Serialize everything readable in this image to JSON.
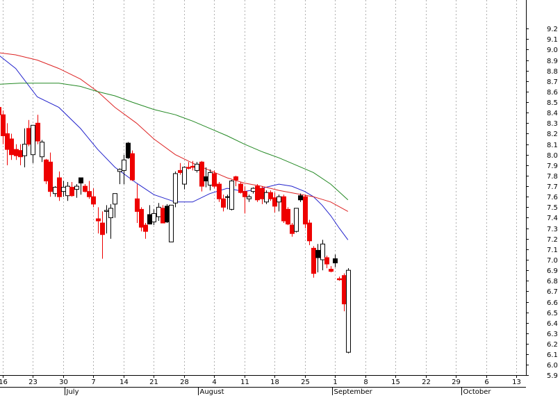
{
  "chart_data": {
    "type": "candlestick",
    "title": "",
    "xlabel": "",
    "ylabel": "",
    "ylim": [
      5.85,
      9.3
    ],
    "y_ticks": [
      "5.9",
      "6.0",
      "6.1",
      "6.2",
      "6.3",
      "6.4",
      "6.5",
      "6.6",
      "6.7",
      "6.8",
      "6.9",
      "7.0",
      "7.1",
      "7.2",
      "7.3",
      "7.4",
      "7.5",
      "7.6",
      "7.7",
      "7.8",
      "7.9",
      "8.0",
      "8.1",
      "8.2",
      "8.3",
      "8.4",
      "8.5",
      "8.6",
      "8.7",
      "8.8",
      "8.9",
      "9.0",
      "9.1",
      "9.2"
    ],
    "x_ticks": [
      {
        "day": 0,
        "label": "16"
      },
      {
        "day": 7,
        "label": "23"
      },
      {
        "day": 14,
        "label": "30"
      },
      {
        "day": 21,
        "label": "7"
      },
      {
        "day": 28,
        "label": "14"
      },
      {
        "day": 35,
        "label": "21"
      },
      {
        "day": 42,
        "label": "28"
      },
      {
        "day": 49,
        "label": "4"
      },
      {
        "day": 56,
        "label": "11"
      },
      {
        "day": 63,
        "label": "18"
      },
      {
        "day": 70,
        "label": "25"
      },
      {
        "day": 77,
        "label": "1"
      },
      {
        "day": 84,
        "label": "8"
      },
      {
        "day": 91,
        "label": "15"
      },
      {
        "day": 98,
        "label": "22"
      },
      {
        "day": 105,
        "label": "29"
      },
      {
        "day": 112,
        "label": "6"
      },
      {
        "day": 119,
        "label": "13"
      }
    ],
    "months": [
      {
        "day": 15,
        "label": "July"
      },
      {
        "day": 46,
        "label": "August"
      },
      {
        "day": 77,
        "label": "September"
      },
      {
        "day": 107,
        "label": "October"
      }
    ],
    "x_range": [
      0,
      124
    ],
    "grid": "vertical dotted",
    "colors": {
      "down_fill": "#ee0000",
      "up_fill": "#ffffff",
      "black_fill": "#000000",
      "ma_short": "#2222cc",
      "ma_medium": "#dd2222",
      "ma_long": "#228822",
      "grid": "#b0b0b0"
    },
    "candles": [
      {
        "day": -1,
        "o": 8.45,
        "h": 8.55,
        "l": 8.25,
        "c": 8.38,
        "col": "down"
      },
      {
        "day": 0,
        "o": 8.38,
        "h": 8.42,
        "l": 8.1,
        "c": 8.18,
        "col": "down"
      },
      {
        "day": 1,
        "o": 8.2,
        "h": 8.3,
        "l": 7.9,
        "c": 8.05,
        "col": "down"
      },
      {
        "day": 2,
        "o": 8.15,
        "h": 8.2,
        "l": 7.95,
        "c": 8.0,
        "col": "down"
      },
      {
        "day": 3,
        "o": 8.05,
        "h": 8.1,
        "l": 7.95,
        "c": 7.99,
        "col": "down"
      },
      {
        "day": 4,
        "o": 7.98,
        "h": 8.1,
        "l": 7.9,
        "c": 8.04,
        "col": "down"
      },
      {
        "day": 5,
        "o": 7.99,
        "h": 8.25,
        "l": 7.88,
        "c": 8.1,
        "col": "up"
      },
      {
        "day": 6,
        "o": 8.1,
        "h": 8.33,
        "l": 8.08,
        "c": 8.25,
        "col": "down"
      },
      {
        "day": 7,
        "o": 8.0,
        "h": 8.28,
        "l": 7.92,
        "c": 8.28,
        "col": "up"
      },
      {
        "day": 8,
        "o": 8.3,
        "h": 8.38,
        "l": 8.1,
        "c": 8.13,
        "col": "down"
      },
      {
        "day": 9,
        "o": 8.12,
        "h": 8.14,
        "l": 7.93,
        "c": 7.98,
        "col": "up"
      },
      {
        "day": 10,
        "o": 7.95,
        "h": 7.96,
        "l": 7.72,
        "c": 7.75,
        "col": "down"
      },
      {
        "day": 11,
        "o": 7.93,
        "h": 8.02,
        "l": 7.6,
        "c": 7.65,
        "col": "down"
      },
      {
        "day": 12,
        "o": 7.63,
        "h": 7.7,
        "l": 7.6,
        "c": 7.69,
        "col": "up"
      },
      {
        "day": 13,
        "o": 7.78,
        "h": 7.84,
        "l": 7.56,
        "c": 7.6,
        "col": "down"
      },
      {
        "day": 14,
        "o": 7.65,
        "h": 7.75,
        "l": 7.6,
        "c": 7.69,
        "col": "up"
      },
      {
        "day": 15,
        "o": 7.61,
        "h": 7.74,
        "l": 7.56,
        "c": 7.7,
        "col": "up"
      },
      {
        "day": 16,
        "o": 7.69,
        "h": 7.74,
        "l": 7.6,
        "c": 7.61,
        "col": "down"
      },
      {
        "day": 17,
        "o": 7.67,
        "h": 7.72,
        "l": 7.59,
        "c": 7.7,
        "col": "up"
      },
      {
        "day": 18,
        "o": 7.78,
        "h": 7.78,
        "l": 7.62,
        "c": 7.73,
        "col": "black"
      },
      {
        "day": 19,
        "o": 7.7,
        "h": 7.72,
        "l": 7.64,
        "c": 7.65,
        "col": "down"
      },
      {
        "day": 20,
        "o": 7.65,
        "h": 7.75,
        "l": 7.58,
        "c": 7.6,
        "col": "down"
      },
      {
        "day": 21,
        "o": 7.6,
        "h": 7.68,
        "l": 7.5,
        "c": 7.53,
        "col": "down"
      },
      {
        "day": 22,
        "o": 7.39,
        "h": 7.5,
        "l": 7.25,
        "c": 7.37,
        "col": "down"
      },
      {
        "day": 23,
        "o": 7.35,
        "h": 7.46,
        "l": 7.01,
        "c": 7.24,
        "col": "down"
      },
      {
        "day": 24,
        "o": 7.47,
        "h": 7.52,
        "l": 7.25,
        "c": 7.46,
        "col": "up"
      },
      {
        "day": 25,
        "o": 7.4,
        "h": 7.53,
        "l": 7.2,
        "c": 7.49,
        "col": "up"
      },
      {
        "day": 26,
        "o": 7.53,
        "h": 7.63,
        "l": 7.4,
        "c": 7.63,
        "col": "up"
      },
      {
        "day": 27,
        "o": 7.84,
        "h": 7.87,
        "l": 7.72,
        "c": 7.86,
        "col": "up"
      },
      {
        "day": 28,
        "o": 7.85,
        "h": 8.0,
        "l": 7.72,
        "c": 7.95,
        "col": "up"
      },
      {
        "day": 29,
        "o": 8.11,
        "h": 8.12,
        "l": 7.96,
        "c": 7.97,
        "col": "black"
      },
      {
        "day": 30,
        "o": 8.01,
        "h": 8.04,
        "l": 7.75,
        "c": 7.76,
        "col": "down"
      },
      {
        "day": 31,
        "o": 7.58,
        "h": 7.72,
        "l": 7.35,
        "c": 7.46,
        "col": "down"
      },
      {
        "day": 32,
        "o": 7.48,
        "h": 7.5,
        "l": 7.27,
        "c": 7.31,
        "col": "down"
      },
      {
        "day": 33,
        "o": 7.33,
        "h": 7.35,
        "l": 7.2,
        "c": 7.27,
        "col": "down"
      },
      {
        "day": 34,
        "o": 7.43,
        "h": 7.52,
        "l": 7.36,
        "c": 7.34,
        "col": "black"
      },
      {
        "day": 35,
        "o": 7.36,
        "h": 7.48,
        "l": 7.33,
        "c": 7.44,
        "col": "up"
      },
      {
        "day": 36,
        "o": 7.41,
        "h": 7.54,
        "l": 7.37,
        "c": 7.5,
        "col": "up"
      },
      {
        "day": 37,
        "o": 7.49,
        "h": 7.52,
        "l": 7.36,
        "c": 7.35,
        "col": "down"
      },
      {
        "day": 38,
        "o": 7.51,
        "h": 7.53,
        "l": 7.35,
        "c": 7.36,
        "col": "black"
      },
      {
        "day": 39,
        "o": 7.17,
        "h": 7.52,
        "l": 7.17,
        "c": 7.52,
        "col": "up"
      },
      {
        "day": 40,
        "o": 7.54,
        "h": 7.84,
        "l": 7.5,
        "c": 7.82,
        "col": "up"
      },
      {
        "day": 41,
        "o": 7.83,
        "h": 7.92,
        "l": 7.81,
        "c": 7.85,
        "col": "down"
      },
      {
        "day": 42,
        "o": 7.72,
        "h": 7.89,
        "l": 7.67,
        "c": 7.88,
        "col": "up"
      },
      {
        "day": 43,
        "o": 7.88,
        "h": 7.93,
        "l": 7.86,
        "c": 7.87,
        "col": "down"
      },
      {
        "day": 44,
        "o": 7.89,
        "h": 7.94,
        "l": 7.85,
        "c": 7.88,
        "col": "down"
      },
      {
        "day": 45,
        "o": 7.85,
        "h": 7.93,
        "l": 7.83,
        "c": 7.91,
        "col": "up"
      },
      {
        "day": 46,
        "o": 7.93,
        "h": 7.94,
        "l": 7.65,
        "c": 7.7,
        "col": "down"
      },
      {
        "day": 47,
        "o": 7.79,
        "h": 7.88,
        "l": 7.69,
        "c": 7.75,
        "col": "black"
      },
      {
        "day": 48,
        "o": 7.71,
        "h": 7.86,
        "l": 7.66,
        "c": 7.83,
        "col": "up"
      },
      {
        "day": 49,
        "o": 7.82,
        "h": 7.85,
        "l": 7.68,
        "c": 7.7,
        "col": "down"
      },
      {
        "day": 50,
        "o": 7.72,
        "h": 7.74,
        "l": 7.55,
        "c": 7.58,
        "col": "down"
      },
      {
        "day": 51,
        "o": 7.58,
        "h": 7.62,
        "l": 7.46,
        "c": 7.5,
        "col": "down"
      },
      {
        "day": 52,
        "o": 7.6,
        "h": 7.62,
        "l": 7.48,
        "c": 7.6,
        "col": "up"
      },
      {
        "day": 53,
        "o": 7.48,
        "h": 7.76,
        "l": 7.47,
        "c": 7.75,
        "col": "up"
      },
      {
        "day": 54,
        "o": 7.79,
        "h": 7.8,
        "l": 7.7,
        "c": 7.76,
        "col": "down"
      },
      {
        "day": 55,
        "o": 7.72,
        "h": 7.74,
        "l": 7.63,
        "c": 7.64,
        "col": "down"
      },
      {
        "day": 56,
        "o": 7.65,
        "h": 7.7,
        "l": 7.44,
        "c": 7.6,
        "col": "down"
      },
      {
        "day": 57,
        "o": 7.58,
        "h": 7.62,
        "l": 7.55,
        "c": 7.6,
        "col": "up"
      },
      {
        "day": 58,
        "o": 7.65,
        "h": 7.69,
        "l": 7.63,
        "c": 7.68,
        "col": "up"
      },
      {
        "day": 59,
        "o": 7.7,
        "h": 7.72,
        "l": 7.55,
        "c": 7.57,
        "col": "down"
      },
      {
        "day": 60,
        "o": 7.68,
        "h": 7.7,
        "l": 7.53,
        "c": 7.58,
        "col": "down"
      },
      {
        "day": 61,
        "o": 7.55,
        "h": 7.66,
        "l": 7.53,
        "c": 7.64,
        "col": "up"
      },
      {
        "day": 62,
        "o": 7.64,
        "h": 7.66,
        "l": 7.56,
        "c": 7.58,
        "col": "down"
      },
      {
        "day": 63,
        "o": 7.59,
        "h": 7.64,
        "l": 7.45,
        "c": 7.51,
        "col": "down"
      },
      {
        "day": 64,
        "o": 7.6,
        "h": 7.62,
        "l": 7.46,
        "c": 7.55,
        "col": "up"
      },
      {
        "day": 65,
        "o": 7.6,
        "h": 7.62,
        "l": 7.35,
        "c": 7.37,
        "col": "down"
      },
      {
        "day": 66,
        "o": 7.48,
        "h": 7.5,
        "l": 7.33,
        "c": 7.34,
        "col": "down"
      },
      {
        "day": 67,
        "o": 7.33,
        "h": 7.35,
        "l": 7.22,
        "c": 7.25,
        "col": "down"
      },
      {
        "day": 68,
        "o": 7.27,
        "h": 7.49,
        "l": 7.26,
        "c": 7.49,
        "col": "up"
      },
      {
        "day": 69,
        "o": 7.57,
        "h": 7.63,
        "l": 7.55,
        "c": 7.61,
        "col": "black"
      },
      {
        "day": 70,
        "o": 7.6,
        "h": 7.62,
        "l": 7.3,
        "c": 7.34,
        "col": "down"
      },
      {
        "day": 71,
        "o": 7.35,
        "h": 7.38,
        "l": 7.14,
        "c": 7.18,
        "col": "down"
      },
      {
        "day": 72,
        "o": 7.11,
        "h": 7.13,
        "l": 6.83,
        "c": 6.87,
        "col": "down"
      },
      {
        "day": 73,
        "o": 7.09,
        "h": 7.15,
        "l": 6.88,
        "c": 7.02,
        "col": "black"
      },
      {
        "day": 74,
        "o": 7.0,
        "h": 7.19,
        "l": 6.9,
        "c": 7.15,
        "col": "up"
      },
      {
        "day": 75,
        "o": 7.02,
        "h": 7.04,
        "l": 6.92,
        "c": 6.96,
        "col": "down"
      },
      {
        "day": 76,
        "o": 6.91,
        "h": 6.94,
        "l": 6.88,
        "c": 6.89,
        "col": "down"
      },
      {
        "day": 77,
        "o": 7.01,
        "h": 7.05,
        "l": 6.93,
        "c": 6.97,
        "col": "black"
      },
      {
        "day": 78,
        "o": 6.82,
        "h": 6.84,
        "l": 6.8,
        "c": 6.81,
        "col": "down"
      },
      {
        "day": 79,
        "o": 6.85,
        "h": 6.87,
        "l": 6.51,
        "c": 6.58,
        "col": "down"
      },
      {
        "day": 80,
        "o": 6.12,
        "h": 6.92,
        "l": 6.11,
        "c": 6.9,
        "col": "up"
      }
    ],
    "series": [
      {
        "kind": "ma_short",
        "color": "#2222cc",
        "points": [
          [
            -1,
            8.95
          ],
          [
            3,
            8.82
          ],
          [
            8,
            8.55
          ],
          [
            13,
            8.45
          ],
          [
            18,
            8.25
          ],
          [
            22,
            8.05
          ],
          [
            26,
            7.88
          ],
          [
            31,
            7.73
          ],
          [
            35,
            7.62
          ],
          [
            40,
            7.55
          ],
          [
            44,
            7.55
          ],
          [
            48,
            7.63
          ],
          [
            52,
            7.68
          ],
          [
            56,
            7.65
          ],
          [
            60,
            7.68
          ],
          [
            64,
            7.72
          ],
          [
            67,
            7.7
          ],
          [
            70,
            7.65
          ],
          [
            72,
            7.6
          ],
          [
            74,
            7.52
          ],
          [
            76,
            7.42
          ],
          [
            78,
            7.3
          ],
          [
            80,
            7.19
          ]
        ]
      },
      {
        "kind": "ma_medium",
        "color": "#dd2222",
        "points": [
          [
            -1,
            8.97
          ],
          [
            3,
            8.95
          ],
          [
            8,
            8.9
          ],
          [
            13,
            8.82
          ],
          [
            18,
            8.72
          ],
          [
            22,
            8.6
          ],
          [
            26,
            8.45
          ],
          [
            31,
            8.3
          ],
          [
            35,
            8.15
          ],
          [
            40,
            8.0
          ],
          [
            44,
            7.92
          ],
          [
            48,
            7.85
          ],
          [
            52,
            7.78
          ],
          [
            56,
            7.73
          ],
          [
            60,
            7.7
          ],
          [
            64,
            7.66
          ],
          [
            68,
            7.63
          ],
          [
            72,
            7.6
          ],
          [
            76,
            7.55
          ],
          [
            80,
            7.46
          ]
        ]
      },
      {
        "kind": "ma_long",
        "color": "#228822",
        "points": [
          [
            -1,
            8.67
          ],
          [
            4,
            8.68
          ],
          [
            8,
            8.68
          ],
          [
            13,
            8.68
          ],
          [
            18,
            8.65
          ],
          [
            22,
            8.6
          ],
          [
            26,
            8.56
          ],
          [
            30,
            8.5
          ],
          [
            35,
            8.43
          ],
          [
            40,
            8.38
          ],
          [
            44,
            8.32
          ],
          [
            48,
            8.25
          ],
          [
            52,
            8.18
          ],
          [
            56,
            8.1
          ],
          [
            60,
            8.03
          ],
          [
            64,
            7.97
          ],
          [
            68,
            7.9
          ],
          [
            72,
            7.83
          ],
          [
            76,
            7.72
          ],
          [
            80,
            7.57
          ]
        ]
      }
    ]
  }
}
